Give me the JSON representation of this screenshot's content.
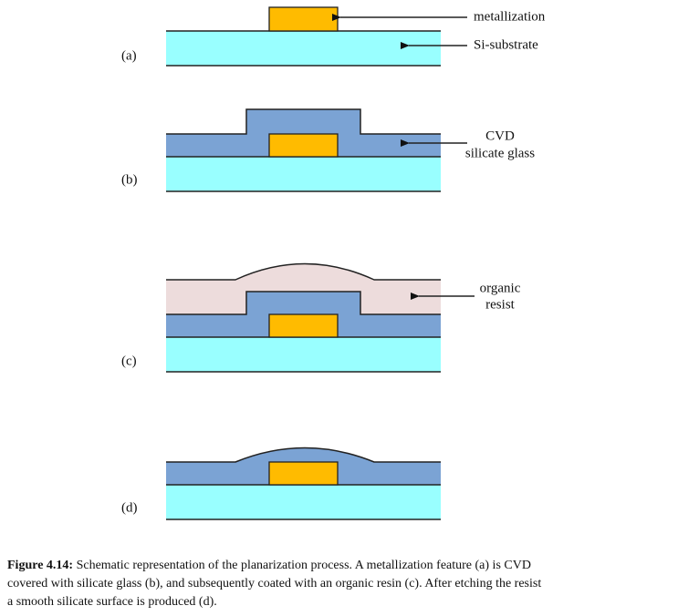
{
  "panels": [
    {
      "label": "(a)"
    },
    {
      "label": "(b)"
    },
    {
      "label": "(c)"
    },
    {
      "label": "(d)"
    }
  ],
  "annotations": {
    "metallization": "metallization",
    "substrate": "Si-substrate",
    "glass": [
      "CVD",
      "silicate glass"
    ],
    "resist": [
      "organic",
      "resist"
    ]
  },
  "caption": {
    "label": "Figure 4.14:",
    "lines": [
      "Schematic representation of the planarization process. A metallization feature (a) is CVD",
      "covered with silicate glass (b), and subsequently coated with an organic resin (c). After etching the resist",
      "a smooth silicate surface is produced (d)."
    ]
  }
}
